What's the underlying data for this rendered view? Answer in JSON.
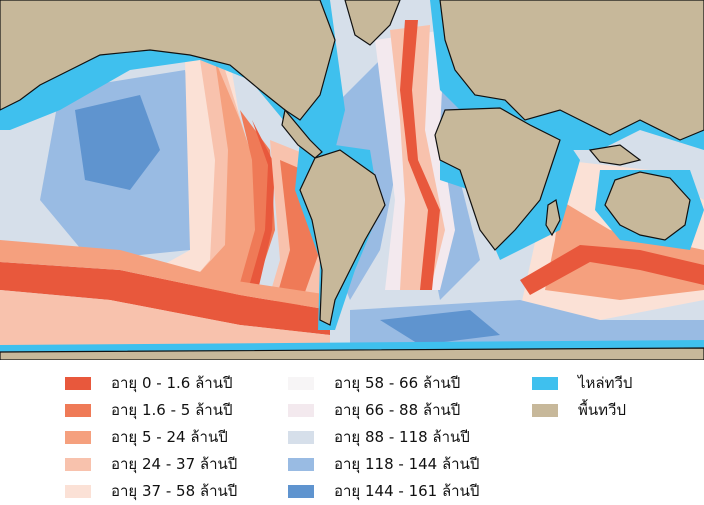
{
  "legend": {
    "items": [
      {
        "label": "อายุ 0 - 1.6 ล้านปี",
        "color": "#e8583c"
      },
      {
        "label": "อายุ 1.6 - 5 ล้านปี",
        "color": "#ef7a57"
      },
      {
        "label": "อายุ 5 - 24 ล้านปี",
        "color": "#f5a07e"
      },
      {
        "label": "อายุ 24 - 37 ล้านปี",
        "color": "#f8c2ad"
      },
      {
        "label": "อายุ 37 - 58 ล้านปี",
        "color": "#fbe1d6"
      },
      {
        "label": "อายุ 58 - 66 ล้านปี",
        "color": "#f7f5f6"
      },
      {
        "label": "อายุ 66 - 88 ล้านปี",
        "color": "#f3e9ee"
      },
      {
        "label": "อายุ 88 - 118 ล้านปี",
        "color": "#d6dfea"
      },
      {
        "label": "อายุ 118 - 144 ล้านปี",
        "color": "#99bbe3"
      },
      {
        "label": "อายุ 144 - 161 ล้านปี",
        "color": "#5f94cf"
      },
      {
        "label": "ไหล่ทวีป",
        "color": "#3fc0ee"
      },
      {
        "label": "พื้นทวีป",
        "color": "#c7b89a"
      }
    ]
  },
  "map": {
    "land_color": "#c7b89a",
    "shelf_color": "#3fc0ee",
    "coast_color": "#111111"
  }
}
